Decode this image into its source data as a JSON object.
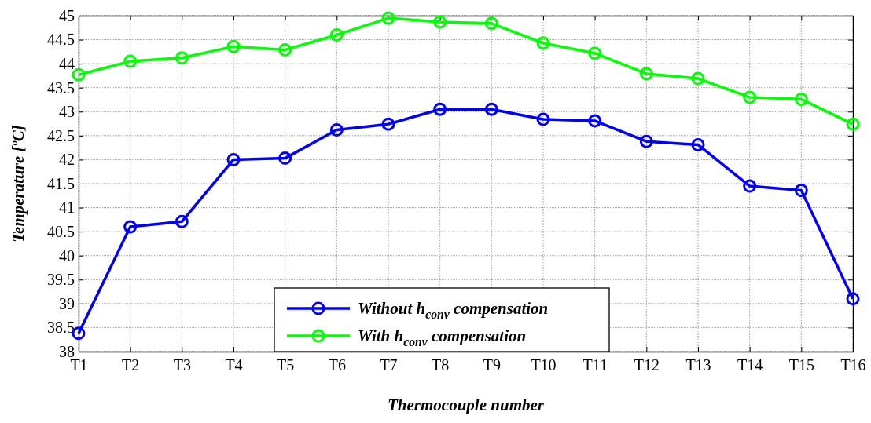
{
  "chart_data": {
    "type": "line",
    "xlabel": "Thermocouple number",
    "ylabel": "Temperature [ºC]",
    "categories": [
      "T1",
      "T2",
      "T3",
      "T4",
      "T5",
      "T6",
      "T7",
      "T8",
      "T9",
      "T10",
      "T11",
      "T12",
      "T13",
      "T14",
      "T15",
      "T16"
    ],
    "series": [
      {
        "name": "Without h$_{conv}$ compensation",
        "color": "#0000ff",
        "values": [
          38.38,
          40.6,
          40.71,
          42.0,
          42.03,
          42.62,
          42.74,
          43.05,
          43.05,
          42.84,
          42.81,
          42.38,
          42.31,
          41.45,
          41.36,
          39.1
        ]
      },
      {
        "name": "With h$_{conv}$ compensation",
        "color": "#00ff00",
        "values": [
          43.77,
          44.05,
          44.12,
          44.36,
          44.29,
          44.6,
          44.95,
          44.87,
          44.84,
          44.43,
          44.22,
          43.79,
          43.69,
          43.3,
          43.26,
          42.74
        ]
      }
    ],
    "ylim": [
      38,
      45
    ],
    "yticks": [
      38,
      38.5,
      39,
      39.5,
      40,
      40.5,
      41,
      41.5,
      42,
      42.5,
      43,
      43.5,
      44,
      44.5,
      45
    ],
    "grid": true,
    "legend": "bottom",
    "marker": "circle",
    "line_style": "solid"
  }
}
